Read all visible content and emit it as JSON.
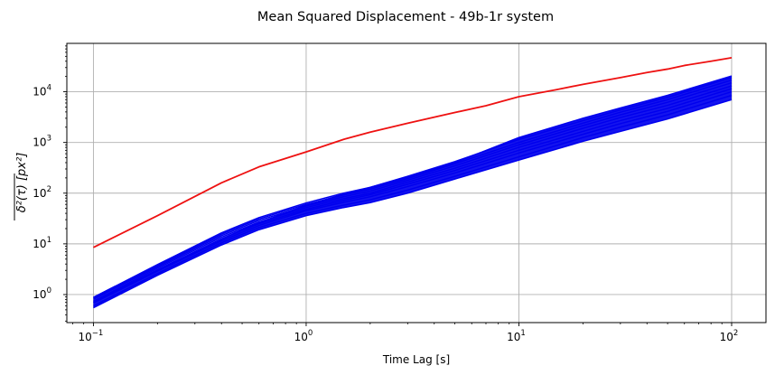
{
  "chart_data": {
    "type": "line",
    "title": "Mean Squared Displacement - 49b-1r system",
    "xlabel": "Time Lag [s]",
    "ylabel": "δ²(τ) [px²]",
    "xscale": "log",
    "yscale": "log",
    "xlim": [
      0.075,
      145
    ],
    "ylim": [
      0.28,
      90000
    ],
    "grid": true,
    "x_ticks": [
      {
        "value": 0.1,
        "base": "10",
        "exp": "−1"
      },
      {
        "value": 1,
        "base": "10",
        "exp": "0"
      },
      {
        "value": 10,
        "base": "10",
        "exp": "1"
      },
      {
        "value": 100,
        "base": "10",
        "exp": "2"
      }
    ],
    "y_ticks": [
      {
        "value": 1,
        "base": "10",
        "exp": "0"
      },
      {
        "value": 10,
        "base": "10",
        "exp": "1"
      },
      {
        "value": 100,
        "base": "10",
        "exp": "2"
      },
      {
        "value": 1000,
        "base": "10",
        "exp": "3"
      },
      {
        "value": 10000,
        "base": "10",
        "exp": "4"
      }
    ],
    "colors": {
      "highlight": "#ee1111",
      "bundle": "#0000ee",
      "grid": "#b0b0b0"
    },
    "series": [
      {
        "color": "#ee1111",
        "points": [
          [
            0.1,
            8.5
          ],
          [
            0.2,
            36
          ],
          [
            0.4,
            160
          ],
          [
            0.6,
            330
          ],
          [
            1.0,
            650
          ],
          [
            1.5,
            1150
          ],
          [
            2.0,
            1600
          ],
          [
            3.0,
            2400
          ],
          [
            5.0,
            3900
          ],
          [
            7.0,
            5300
          ],
          [
            10.0,
            8000
          ],
          [
            15.0,
            11000
          ],
          [
            20.0,
            14000
          ],
          [
            30.0,
            19000
          ],
          [
            40.0,
            24000
          ],
          [
            50.0,
            28000
          ],
          [
            60.0,
            33000
          ],
          [
            80.0,
            40000
          ],
          [
            100.0,
            47000
          ]
        ]
      },
      {
        "color": "#0000ee",
        "points": [
          [
            0.1,
            0.55
          ],
          [
            0.2,
            2.4
          ],
          [
            0.4,
            9.5
          ],
          [
            0.6,
            19
          ],
          [
            1.0,
            36
          ],
          [
            1.5,
            52
          ],
          [
            2.0,
            65
          ],
          [
            3.0,
            100
          ],
          [
            5.0,
            190
          ],
          [
            10.0,
            450
          ],
          [
            20.0,
            1050
          ],
          [
            30.0,
            1650
          ],
          [
            50.0,
            2900
          ],
          [
            100.0,
            7000
          ]
        ]
      },
      {
        "color": "#0000ee",
        "points": [
          [
            0.1,
            0.6
          ],
          [
            0.2,
            2.6
          ],
          [
            0.4,
            10.5
          ],
          [
            0.6,
            21
          ],
          [
            1.0,
            40
          ],
          [
            1.5,
            58
          ],
          [
            2.0,
            74
          ],
          [
            3.0,
            115
          ],
          [
            5.0,
            215
          ],
          [
            10.0,
            520
          ],
          [
            20.0,
            1250
          ],
          [
            30.0,
            2000
          ],
          [
            50.0,
            3500
          ],
          [
            100.0,
            8500
          ]
        ]
      },
      {
        "color": "#0000ee",
        "points": [
          [
            0.1,
            0.68
          ],
          [
            0.2,
            2.9
          ],
          [
            0.4,
            11.5
          ],
          [
            0.6,
            23
          ],
          [
            1.0,
            45
          ],
          [
            1.5,
            66
          ],
          [
            2.0,
            85
          ],
          [
            3.0,
            135
          ],
          [
            5.0,
            250
          ],
          [
            10.0,
            620
          ],
          [
            20.0,
            1450
          ],
          [
            30.0,
            2350
          ],
          [
            50.0,
            4100
          ],
          [
            100.0,
            10000
          ]
        ]
      },
      {
        "color": "#0000ee",
        "points": [
          [
            0.1,
            0.72
          ],
          [
            0.2,
            3.1
          ],
          [
            0.4,
            12.5
          ],
          [
            0.6,
            25
          ],
          [
            1.0,
            48
          ],
          [
            1.5,
            72
          ],
          [
            2.0,
            93
          ],
          [
            3.0,
            150
          ],
          [
            5.0,
            280
          ],
          [
            10.0,
            700
          ],
          [
            20.0,
            1650
          ],
          [
            30.0,
            2700
          ],
          [
            50.0,
            4700
          ],
          [
            100.0,
            11500
          ]
        ]
      },
      {
        "color": "#0000ee",
        "points": [
          [
            0.1,
            0.75
          ],
          [
            0.2,
            3.3
          ],
          [
            0.4,
            13.5
          ],
          [
            0.6,
            27
          ],
          [
            1.0,
            52
          ],
          [
            1.5,
            78
          ],
          [
            2.0,
            100
          ],
          [
            3.0,
            165
          ],
          [
            5.0,
            310
          ],
          [
            10.0,
            800
          ],
          [
            20.0,
            1900
          ],
          [
            30.0,
            3100
          ],
          [
            50.0,
            5400
          ],
          [
            100.0,
            13000
          ]
        ]
      },
      {
        "color": "#0000ee",
        "points": [
          [
            0.1,
            0.8
          ],
          [
            0.2,
            3.5
          ],
          [
            0.4,
            14.5
          ],
          [
            0.6,
            29
          ],
          [
            1.0,
            56
          ],
          [
            1.5,
            85
          ],
          [
            2.0,
            110
          ],
          [
            3.0,
            180
          ],
          [
            5.0,
            345
          ],
          [
            10.0,
            900
          ],
          [
            20.0,
            2150
          ],
          [
            30.0,
            3500
          ],
          [
            50.0,
            6200
          ],
          [
            100.0,
            15000
          ]
        ]
      },
      {
        "color": "#0000ee",
        "points": [
          [
            0.1,
            0.84
          ],
          [
            0.2,
            3.7
          ],
          [
            0.4,
            15.5
          ],
          [
            0.6,
            31
          ],
          [
            1.0,
            60
          ],
          [
            1.5,
            92
          ],
          [
            2.0,
            120
          ],
          [
            3.0,
            195
          ],
          [
            5.0,
            380
          ],
          [
            10.0,
            1000
          ],
          [
            20.0,
            2400
          ],
          [
            30.0,
            3950
          ],
          [
            50.0,
            7000
          ],
          [
            100.0,
            17000
          ]
        ]
      },
      {
        "color": "#0000ee",
        "points": [
          [
            0.1,
            0.88
          ],
          [
            0.2,
            3.9
          ],
          [
            0.4,
            16.5
          ],
          [
            0.6,
            33
          ],
          [
            1.0,
            64
          ],
          [
            1.5,
            100
          ],
          [
            2.0,
            130
          ],
          [
            3.0,
            215
          ],
          [
            5.0,
            420
          ],
          [
            10.0,
            1150
          ],
          [
            20.0,
            2700
          ],
          [
            30.0,
            4400
          ],
          [
            50.0,
            7800
          ],
          [
            100.0,
            19000
          ]
        ]
      },
      {
        "color": "#0000ee",
        "points": [
          [
            0.1,
            0.7
          ],
          [
            0.2,
            3.0
          ],
          [
            0.4,
            12.5
          ],
          [
            0.6,
            26
          ],
          [
            1.0,
            58
          ],
          [
            1.5,
            95
          ],
          [
            2.0,
            130
          ],
          [
            3.0,
            210
          ],
          [
            5.0,
            400
          ],
          [
            10.0,
            1250
          ],
          [
            20.0,
            3000
          ],
          [
            30.0,
            4800
          ],
          [
            50.0,
            8500
          ],
          [
            100.0,
            20500
          ]
        ]
      }
    ]
  }
}
